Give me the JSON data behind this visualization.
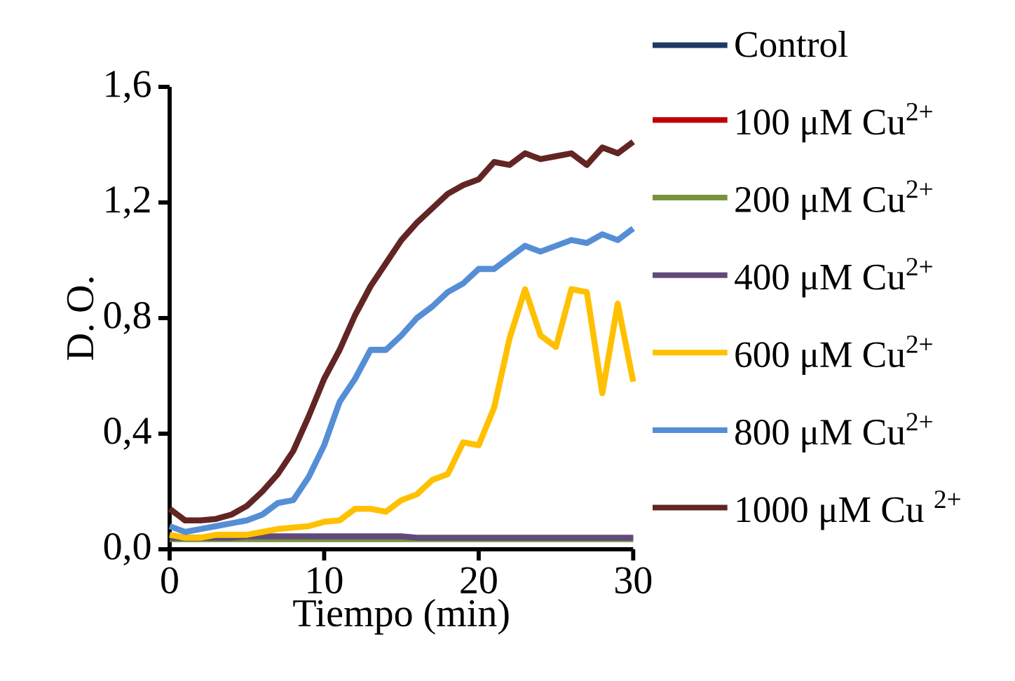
{
  "chart_data": {
    "type": "line",
    "xlabel": "Tiempo (min)",
    "ylabel": "D. O.",
    "x": [
      0,
      1,
      2,
      3,
      4,
      5,
      6,
      7,
      8,
      9,
      10,
      11,
      12,
      13,
      14,
      15,
      16,
      17,
      18,
      19,
      20,
      21,
      22,
      23,
      24,
      25,
      26,
      27,
      28,
      29,
      30
    ],
    "series": [
      {
        "name": "Control",
        "color": "#1f3864",
        "values": [
          null,
          null,
          null,
          null,
          null,
          null,
          null,
          null,
          null,
          null,
          null,
          null,
          null,
          null,
          null,
          null,
          null,
          null,
          null,
          null,
          null,
          null,
          null,
          null,
          null,
          null,
          null,
          null,
          null,
          null,
          null
        ]
      },
      {
        "name": "100 μM Cu$^{2+}$",
        "color": "#c00000",
        "values": [
          null,
          null,
          null,
          null,
          null,
          null,
          null,
          null,
          null,
          null,
          null,
          null,
          null,
          null,
          null,
          null,
          null,
          null,
          null,
          null,
          null,
          null,
          null,
          null,
          null,
          null,
          null,
          null,
          null,
          null,
          null
        ]
      },
      {
        "name": "200 μM Cu$^{2+}$",
        "color": "#77933c",
        "values": [
          0.035,
          0.035,
          0.035,
          0.035,
          0.035,
          0.035,
          0.035,
          0.035,
          0.035,
          0.035,
          0.035,
          0.035,
          0.035,
          0.035,
          0.035,
          0.035,
          0.035,
          0.035,
          0.035,
          0.035,
          0.035,
          0.035,
          0.035,
          0.035,
          0.035,
          0.035,
          0.035,
          0.035,
          0.035,
          0.035,
          0.035
        ]
      },
      {
        "name": "400 μM Cu$^{2+}$",
        "color": "#604a7b",
        "values": [
          0.04,
          0.04,
          0.04,
          0.04,
          0.04,
          0.045,
          0.045,
          0.045,
          0.045,
          0.045,
          0.045,
          0.045,
          0.045,
          0.045,
          0.045,
          0.045,
          0.04,
          0.04,
          0.04,
          0.04,
          0.04,
          0.04,
          0.04,
          0.04,
          0.04,
          0.04,
          0.04,
          0.04,
          0.04,
          0.04,
          0.04
        ]
      },
      {
        "name": "600 μM Cu$^{2+}$",
        "color": "#ffc000",
        "values": [
          0.05,
          0.04,
          0.04,
          0.05,
          0.05,
          0.05,
          0.06,
          0.07,
          0.075,
          0.08,
          0.095,
          0.1,
          0.14,
          0.14,
          0.13,
          0.17,
          0.19,
          0.24,
          0.26,
          0.37,
          0.36,
          0.49,
          0.73,
          0.9,
          0.74,
          0.7,
          0.9,
          0.89,
          0.54,
          0.85,
          0.58
        ]
      },
      {
        "name": "800 μM Cu$^{2+}$",
        "color": "#558ed5",
        "values": [
          0.08,
          0.06,
          0.07,
          0.08,
          0.09,
          0.1,
          0.12,
          0.16,
          0.17,
          0.25,
          0.36,
          0.51,
          0.59,
          0.69,
          0.69,
          0.74,
          0.8,
          0.84,
          0.89,
          0.92,
          0.97,
          0.97,
          1.01,
          1.05,
          1.03,
          1.05,
          1.07,
          1.06,
          1.09,
          1.07,
          1.11
        ]
      },
      {
        "name": "1000 μM Cu $^{2+}$",
        "color": "#632523",
        "values": [
          0.14,
          0.1,
          0.1,
          0.105,
          0.12,
          0.15,
          0.2,
          0.26,
          0.34,
          0.46,
          0.59,
          0.69,
          0.81,
          0.91,
          0.99,
          1.07,
          1.13,
          1.18,
          1.23,
          1.26,
          1.28,
          1.34,
          1.33,
          1.37,
          1.35,
          1.36,
          1.37,
          1.33,
          1.39,
          1.37,
          1.41
        ]
      }
    ],
    "xlim": [
      0,
      30
    ],
    "xticks": [
      0,
      10,
      20,
      30
    ],
    "ylim": [
      0,
      1.6
    ],
    "yticks": [
      {
        "value": 0,
        "label": "0,0"
      },
      {
        "value": 0.4,
        "label": "0,4"
      },
      {
        "value": 0.8,
        "label": "0,8"
      },
      {
        "value": 1.2,
        "label": "1,2"
      },
      {
        "value": 1.6,
        "label": "1,6"
      }
    ],
    "grid": false,
    "legend": "right",
    "marker": "none",
    "line_style": "solid"
  }
}
